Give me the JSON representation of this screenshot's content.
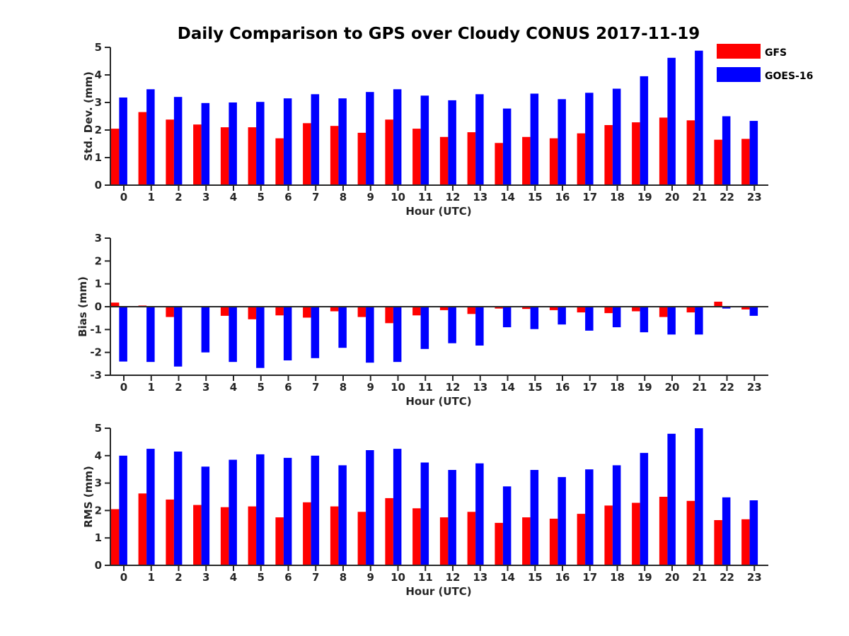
{
  "title": "Daily Comparison to GPS over Cloudy CONUS 2017-11-19",
  "legend": {
    "placement": "top-right, outside plot",
    "entries": [
      {
        "label": "GFS",
        "color": "#ff0000"
      },
      {
        "label": "GOES-16",
        "color": "#0000ff"
      }
    ]
  },
  "colors": {
    "gfs": "#ff0000",
    "goes16": "#0000ff",
    "axis": "#262626"
  },
  "chart_data": [
    {
      "type": "bar",
      "xlabel": "Hour (UTC)",
      "ylabel": "Std. Dev. (mm)",
      "ylim": [
        0,
        5
      ],
      "yticks": [
        0,
        1,
        2,
        3,
        4,
        5
      ],
      "categories": [
        "0",
        "1",
        "2",
        "3",
        "4",
        "5",
        "6",
        "7",
        "8",
        "9",
        "10",
        "11",
        "12",
        "13",
        "14",
        "15",
        "16",
        "17",
        "18",
        "19",
        "20",
        "21",
        "22",
        "23"
      ],
      "series": [
        {
          "name": "GFS",
          "values": [
            2.05,
            2.65,
            2.38,
            2.2,
            2.1,
            2.1,
            1.7,
            2.25,
            2.15,
            1.9,
            2.38,
            2.05,
            1.75,
            1.92,
            1.53,
            1.75,
            1.7,
            1.88,
            2.18,
            2.28,
            2.45,
            2.35,
            1.65,
            1.68
          ]
        },
        {
          "name": "GOES-16",
          "values": [
            3.18,
            3.48,
            3.2,
            2.98,
            3.0,
            3.02,
            3.15,
            3.3,
            3.15,
            3.38,
            3.48,
            3.25,
            3.08,
            3.3,
            2.78,
            3.32,
            3.12,
            3.35,
            3.5,
            3.95,
            4.62,
            4.88,
            2.5,
            2.33
          ]
        }
      ]
    },
    {
      "type": "bar",
      "xlabel": "Hour (UTC)",
      "ylabel": "Bias (mm)",
      "ylim": [
        -3,
        3
      ],
      "yticks": [
        -3,
        -2,
        -1,
        0,
        1,
        2,
        3
      ],
      "categories": [
        "0",
        "1",
        "2",
        "3",
        "4",
        "5",
        "6",
        "7",
        "8",
        "9",
        "10",
        "11",
        "12",
        "13",
        "14",
        "15",
        "16",
        "17",
        "18",
        "19",
        "20",
        "21",
        "22",
        "23"
      ],
      "series": [
        {
          "name": "GFS",
          "values": [
            0.18,
            0.05,
            -0.45,
            -0.02,
            -0.4,
            -0.55,
            -0.38,
            -0.48,
            -0.2,
            -0.45,
            -0.72,
            -0.38,
            -0.15,
            -0.32,
            -0.08,
            -0.1,
            -0.15,
            -0.25,
            -0.28,
            -0.2,
            -0.45,
            -0.25,
            0.22,
            -0.12
          ]
        },
        {
          "name": "GOES-16",
          "values": [
            -2.4,
            -2.42,
            -2.62,
            -2.0,
            -2.42,
            -2.68,
            -2.35,
            -2.25,
            -1.8,
            -2.45,
            -2.42,
            -1.85,
            -1.6,
            -1.7,
            -0.9,
            -0.98,
            -0.78,
            -1.05,
            -0.9,
            -1.12,
            -1.22,
            -1.22,
            -0.08,
            -0.4
          ]
        }
      ]
    },
    {
      "type": "bar",
      "xlabel": "Hour (UTC)",
      "ylabel": "RMS (mm)",
      "ylim": [
        0,
        5
      ],
      "yticks": [
        0,
        1,
        2,
        3,
        4,
        5
      ],
      "categories": [
        "0",
        "1",
        "2",
        "3",
        "4",
        "5",
        "6",
        "7",
        "8",
        "9",
        "10",
        "11",
        "12",
        "13",
        "14",
        "15",
        "16",
        "17",
        "18",
        "19",
        "20",
        "21",
        "22",
        "23"
      ],
      "series": [
        {
          "name": "GFS",
          "values": [
            2.05,
            2.62,
            2.4,
            2.2,
            2.12,
            2.15,
            1.75,
            2.3,
            2.15,
            1.95,
            2.45,
            2.08,
            1.75,
            1.95,
            1.55,
            1.75,
            1.7,
            1.88,
            2.18,
            2.28,
            2.5,
            2.35,
            1.65,
            1.68
          ]
        },
        {
          "name": "GOES-16",
          "values": [
            4.0,
            4.25,
            4.15,
            3.6,
            3.85,
            4.05,
            3.92,
            4.0,
            3.65,
            4.2,
            4.25,
            3.75,
            3.48,
            3.72,
            2.88,
            3.48,
            3.22,
            3.5,
            3.65,
            4.1,
            4.8,
            5.0,
            2.48,
            2.37
          ]
        }
      ]
    }
  ]
}
